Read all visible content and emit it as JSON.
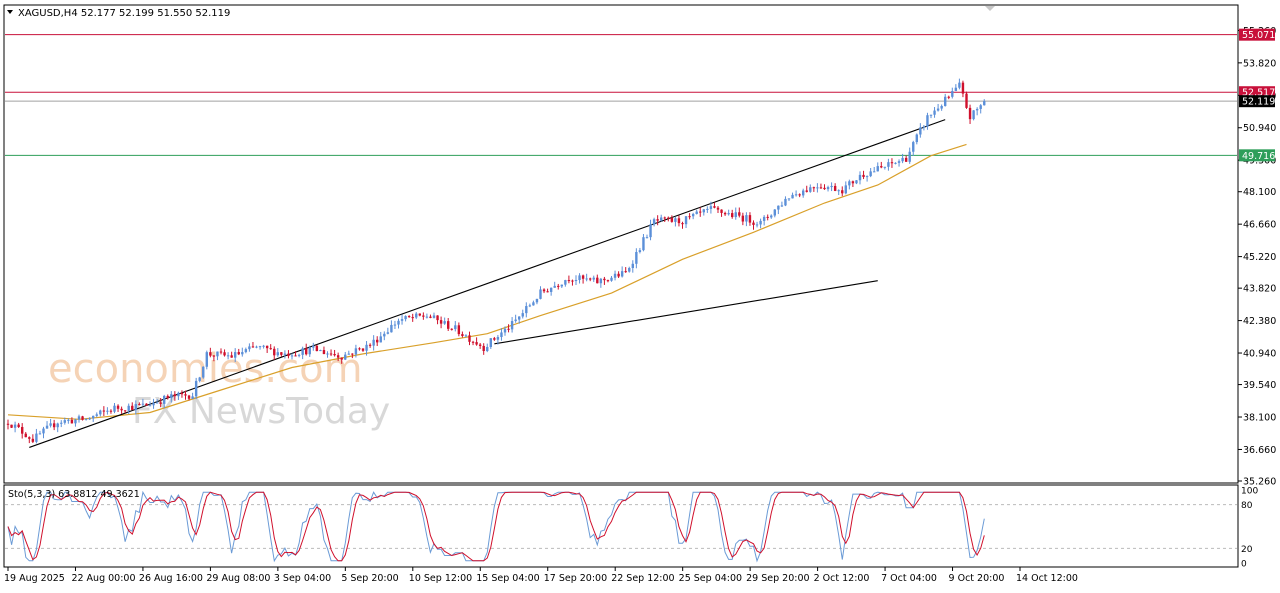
{
  "header": {
    "symbol_line": "XAGUSD,H4  52.177 52.199 51.550 52.119",
    "stoch_label": "Sto(5,3,3) 63.8812 49.3621"
  },
  "watermark": {
    "line1": "economies.com",
    "line2": "FX NewsToday"
  },
  "colors": {
    "bull": "#5b8fd8",
    "bear": "#d0102c",
    "ma": "#d9a02a",
    "resistance": "#c8103a",
    "support": "#2e9e5a",
    "price_line": "#a0a0a0",
    "stoch_main": "#6b9bd6",
    "stoch_signal": "#d0102c"
  },
  "chart_data": {
    "type": "candlestick",
    "timeframe": "H4",
    "ylim": [
      35.26,
      55.9
    ],
    "y_ticks": [
      "35.260",
      "36.660",
      "38.100",
      "39.540",
      "40.940",
      "42.380",
      "43.820",
      "45.220",
      "46.660",
      "48.100",
      "49.500",
      "50.940",
      "52.380",
      "53.820",
      "55.260"
    ],
    "x_ticks": [
      "19 Aug 2025",
      "22 Aug 00:00",
      "26 Aug 16:00",
      "29 Aug 08:00",
      "3 Sep 04:00",
      "5 Sep 20:00",
      "10 Sep 12:00",
      "15 Sep 04:00",
      "17 Sep 20:00",
      "22 Sep 12:00",
      "25 Sep 04:00",
      "29 Sep 20:00",
      "2 Oct 12:00",
      "7 Oct 04:00",
      "9 Oct 20:00",
      "14 Oct 12:00"
    ],
    "levels": [
      {
        "label": "55.071",
        "value": 55.071,
        "role": "resistance"
      },
      {
        "label": "52.517",
        "value": 52.517,
        "role": "resistance"
      },
      {
        "label": "52.119",
        "value": 52.119,
        "role": "current"
      },
      {
        "label": "49.716",
        "value": 49.716,
        "role": "support"
      }
    ],
    "close_anchors": [
      [
        0,
        37.9
      ],
      [
        7,
        37.1
      ],
      [
        14,
        37.9
      ],
      [
        22,
        38.0
      ],
      [
        30,
        38.5
      ],
      [
        38,
        38.6
      ],
      [
        46,
        39.0
      ],
      [
        52,
        39.1
      ],
      [
        56,
        40.9
      ],
      [
        63,
        40.8
      ],
      [
        70,
        41.2
      ],
      [
        78,
        40.9
      ],
      [
        86,
        41.1
      ],
      [
        94,
        40.8
      ],
      [
        102,
        41.3
      ],
      [
        110,
        42.4
      ],
      [
        118,
        42.6
      ],
      [
        126,
        42.0
      ],
      [
        134,
        41.2
      ],
      [
        142,
        42.2
      ],
      [
        150,
        43.6
      ],
      [
        158,
        44.3
      ],
      [
        166,
        44.1
      ],
      [
        174,
        44.5
      ],
      [
        182,
        46.8
      ],
      [
        190,
        46.8
      ],
      [
        198,
        47.3
      ],
      [
        206,
        47.0
      ],
      [
        212,
        46.7
      ],
      [
        220,
        47.9
      ],
      [
        228,
        48.4
      ],
      [
        235,
        48.2
      ],
      [
        241,
        48.9
      ],
      [
        247,
        49.2
      ],
      [
        253,
        49.6
      ],
      [
        259,
        51.4
      ],
      [
        265,
        52.3
      ],
      [
        268,
        52.8
      ],
      [
        271,
        51.4
      ],
      [
        275,
        52.1
      ]
    ],
    "candle_count": 276,
    "moving_average_anchors": [
      [
        0,
        38.2
      ],
      [
        20,
        38.0
      ],
      [
        40,
        38.3
      ],
      [
        60,
        39.3
      ],
      [
        80,
        40.3
      ],
      [
        100,
        40.9
      ],
      [
        120,
        41.4
      ],
      [
        135,
        41.8
      ],
      [
        150,
        42.6
      ],
      [
        170,
        43.6
      ],
      [
        190,
        45.1
      ],
      [
        210,
        46.3
      ],
      [
        230,
        47.6
      ],
      [
        245,
        48.4
      ],
      [
        260,
        49.7
      ],
      [
        270,
        50.2
      ]
    ],
    "trendlines": [
      {
        "from": [
          6,
          36.75
        ],
        "to": [
          264,
          51.3
        ]
      },
      {
        "from": [
          137,
          41.35
        ],
        "to": [
          245,
          44.15
        ]
      }
    ],
    "stochastic": {
      "label": "Sto(5,3,3) 63.8812 49.3621",
      "levels": [
        80,
        20
      ],
      "scale_labels": [
        "100",
        "80",
        "20",
        "0"
      ],
      "main_last": 63.8812,
      "signal_last": 49.3621
    }
  }
}
